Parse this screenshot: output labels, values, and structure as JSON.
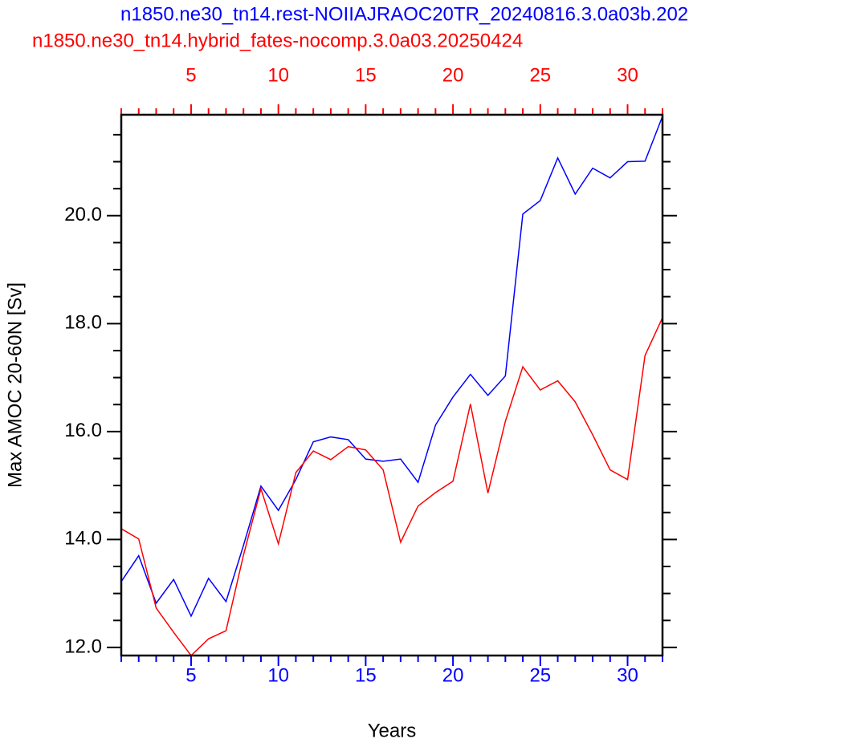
{
  "chart_data": {
    "type": "line",
    "xlabel": "Years",
    "ylabel": "Max AMOC 20-60N [Sv]",
    "x": [
      1,
      2,
      3,
      4,
      5,
      6,
      7,
      8,
      9,
      10,
      11,
      12,
      13,
      14,
      15,
      16,
      17,
      18,
      19,
      20,
      21,
      22,
      23,
      24,
      25,
      26,
      27,
      28,
      29,
      30,
      31,
      32
    ],
    "xlim": [
      1,
      32
    ],
    "ylim": [
      11.85,
      21.87
    ],
    "xticks": [
      5,
      10,
      15,
      20,
      25,
      30
    ],
    "xminorticks": [
      1,
      2,
      3,
      4,
      6,
      7,
      8,
      9,
      11,
      12,
      13,
      14,
      16,
      17,
      18,
      19,
      21,
      22,
      23,
      24,
      26,
      27,
      28,
      29,
      31,
      32
    ],
    "yticks": [
      {
        "value": 12,
        "label": "12.0"
      },
      {
        "value": 14,
        "label": "14.0"
      },
      {
        "value": 16,
        "label": "16.0"
      },
      {
        "value": 18,
        "label": "18.0"
      },
      {
        "value": 20,
        "label": "20.0"
      }
    ],
    "yminorticks": [
      12.5,
      13,
      13.5,
      14.5,
      15,
      15.5,
      16.5,
      17,
      17.5,
      18.5,
      19,
      19.5,
      20.5,
      21,
      21.5
    ],
    "series": [
      {
        "name": "n1850.ne30_tn14.rest-NOIIAJRAOC20TR_20240816.3.0a03b.202",
        "color": "#0000ff",
        "xaxis": "bottom",
        "values": [
          13.22,
          13.7,
          12.82,
          13.26,
          12.58,
          13.28,
          12.85,
          13.89,
          14.99,
          14.54,
          15.11,
          15.81,
          15.9,
          15.85,
          15.49,
          15.45,
          15.49,
          15.06,
          16.12,
          16.64,
          17.06,
          16.67,
          17.03,
          20.03,
          20.28,
          21.07,
          20.4,
          20.88,
          20.7,
          21.0,
          21.01,
          21.84
        ]
      },
      {
        "name": "n1850.ne30_tn14.hybrid_fates-nocomp.3.0a03.20250424",
        "color": "#ff0000",
        "xaxis": "top",
        "values": [
          14.2,
          14.01,
          12.73,
          12.28,
          11.85,
          12.16,
          12.31,
          13.71,
          14.94,
          13.92,
          15.24,
          15.64,
          15.48,
          15.72,
          15.66,
          15.29,
          13.95,
          14.62,
          14.87,
          15.08,
          16.51,
          14.86,
          16.19,
          17.2,
          16.77,
          16.94,
          16.55,
          15.94,
          15.29,
          15.11,
          17.41,
          18.11
        ]
      }
    ]
  }
}
